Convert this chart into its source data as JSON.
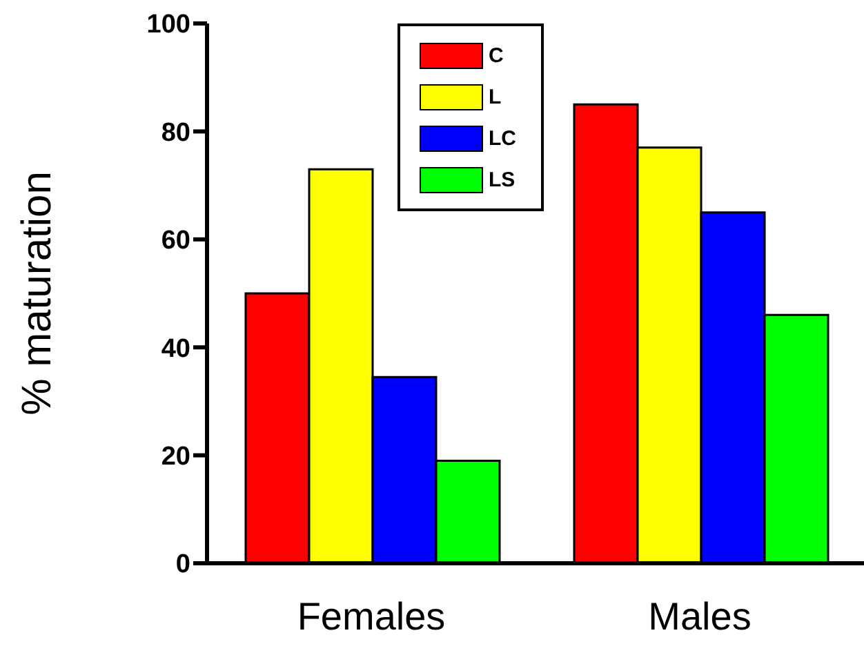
{
  "chart_data": {
    "type": "bar",
    "ylabel": "% maturation",
    "categories": [
      "Females",
      "Males"
    ],
    "series": [
      {
        "name": "C",
        "color": "#ff0000",
        "values": [
          50,
          85
        ]
      },
      {
        "name": "L",
        "color": "#ffff00",
        "values": [
          73,
          77
        ]
      },
      {
        "name": "LC",
        "color": "#0000ff",
        "values": [
          34.5,
          65
        ]
      },
      {
        "name": "LS",
        "color": "#00ff00",
        "values": [
          19,
          46
        ]
      }
    ],
    "ylim": [
      0,
      100
    ],
    "yticks": [
      0,
      20,
      40,
      60,
      80,
      100
    ],
    "legend": "top",
    "grid": false
  }
}
